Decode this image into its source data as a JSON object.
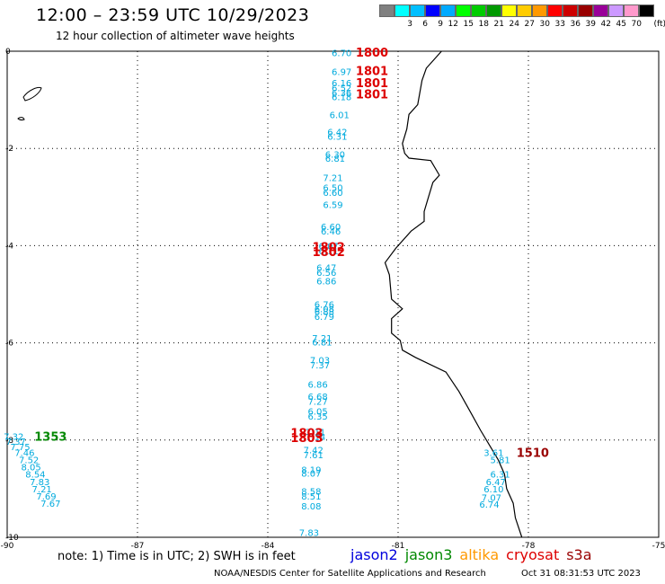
{
  "title": "12:00 – 23:59 UTC 10/29/2023",
  "subtitle": "12 hour collection of altimeter wave heights",
  "colorbar": {
    "unit": "(ft)",
    "items": [
      {
        "label": "",
        "color": "#808080"
      },
      {
        "label": "3",
        "color": "#00ffff"
      },
      {
        "label": "6",
        "color": "#00bfff"
      },
      {
        "label": "9",
        "color": "#0000ff"
      },
      {
        "label": "12",
        "color": "#00aaff"
      },
      {
        "label": "15",
        "color": "#00ff00"
      },
      {
        "label": "18",
        "color": "#00cc00"
      },
      {
        "label": "21",
        "color": "#009900"
      },
      {
        "label": "24",
        "color": "#ffff00"
      },
      {
        "label": "27",
        "color": "#ffcc00"
      },
      {
        "label": "30",
        "color": "#ff9900"
      },
      {
        "label": "33",
        "color": "#ff0000"
      },
      {
        "label": "36",
        "color": "#cc0000"
      },
      {
        "label": "39",
        "color": "#990000"
      },
      {
        "label": "42",
        "color": "#990099"
      },
      {
        "label": "45",
        "color": "#cc99ff"
      },
      {
        "label": "70",
        "color": "#ff99cc"
      },
      {
        "label": "",
        "color": "#000000"
      }
    ]
  },
  "axes": {
    "lon_min": -90,
    "lon_max": -75,
    "lat_min": -10,
    "lat_max": 0,
    "x_ticks": [
      "-90",
      "-87",
      "-84",
      "-81",
      "-78",
      "-75"
    ],
    "y_ticks": [
      "0",
      "-2",
      "-4",
      "-6",
      "-8",
      "-10"
    ]
  },
  "colors": {
    "swh": "#00aadd",
    "jason2": "#0000dd",
    "jason3": "#008800",
    "altika": "#ff9900",
    "cryosat": "#dd0000",
    "s3a": "#990000",
    "coast": "#000000",
    "grid": "#000000"
  },
  "chart_data": {
    "type": "scatter",
    "series": [
      {
        "name": "cryosat",
        "time_labels": [
          {
            "lon": -81.6,
            "lat": -0.02,
            "text": "1800"
          },
          {
            "lon": -81.6,
            "lat": -0.4,
            "text": "1801"
          },
          {
            "lon": -81.6,
            "lat": -0.65,
            "text": "1801"
          },
          {
            "lon": -81.6,
            "lat": -0.88,
            "text": "1801"
          },
          {
            "lon": -82.6,
            "lat": -4.02,
            "text": "1802"
          },
          {
            "lon": -82.6,
            "lat": -4.12,
            "text": "1802"
          },
          {
            "lon": -83.1,
            "lat": -7.85,
            "text": "1803"
          },
          {
            "lon": -83.1,
            "lat": -7.95,
            "text": "1803"
          }
        ],
        "points": [
          {
            "lon": -82.3,
            "lat": -0.03,
            "swh": "6.70"
          },
          {
            "lon": -82.3,
            "lat": -0.42,
            "swh": "6.97"
          },
          {
            "lon": -82.3,
            "lat": -0.65,
            "swh": "6.16"
          },
          {
            "lon": -82.3,
            "lat": -0.75,
            "swh": "6.52"
          },
          {
            "lon": -82.3,
            "lat": -0.85,
            "swh": "6.36"
          },
          {
            "lon": -82.3,
            "lat": -0.93,
            "swh": "6.18"
          },
          {
            "lon": -82.35,
            "lat": -1.3,
            "swh": "6.01"
          },
          {
            "lon": -82.4,
            "lat": -1.65,
            "swh": "6.42"
          },
          {
            "lon": -82.4,
            "lat": -1.75,
            "swh": "6.31"
          },
          {
            "lon": -82.45,
            "lat": -2.12,
            "swh": "6.30"
          },
          {
            "lon": -82.45,
            "lat": -2.2,
            "swh": "6.81"
          },
          {
            "lon": -82.5,
            "lat": -2.6,
            "swh": "7.21"
          },
          {
            "lon": -82.5,
            "lat": -2.8,
            "swh": "6.50"
          },
          {
            "lon": -82.5,
            "lat": -2.9,
            "swh": "6.60"
          },
          {
            "lon": -82.5,
            "lat": -3.15,
            "swh": "6.59"
          },
          {
            "lon": -82.55,
            "lat": -3.6,
            "swh": "6.60"
          },
          {
            "lon": -82.55,
            "lat": -3.7,
            "swh": "6.46"
          },
          {
            "lon": -82.6,
            "lat": -4.0,
            "swh": "6.07"
          },
          {
            "lon": -82.6,
            "lat": -4.1,
            "swh": "6.11"
          },
          {
            "lon": -82.65,
            "lat": -4.45,
            "swh": "6.47"
          },
          {
            "lon": -82.65,
            "lat": -4.55,
            "swh": "6.56"
          },
          {
            "lon": -82.65,
            "lat": -4.72,
            "swh": "6.86"
          },
          {
            "lon": -82.7,
            "lat": -5.2,
            "swh": "6.76"
          },
          {
            "lon": -82.7,
            "lat": -5.3,
            "swh": "6.08"
          },
          {
            "lon": -82.7,
            "lat": -5.35,
            "swh": "6.88"
          },
          {
            "lon": -82.7,
            "lat": -5.45,
            "swh": "6.79"
          },
          {
            "lon": -82.75,
            "lat": -5.9,
            "swh": "7.21"
          },
          {
            "lon": -82.75,
            "lat": -5.98,
            "swh": "6.81"
          },
          {
            "lon": -82.8,
            "lat": -6.35,
            "swh": "7.03"
          },
          {
            "lon": -82.8,
            "lat": -6.45,
            "swh": "7.37"
          },
          {
            "lon": -82.85,
            "lat": -6.85,
            "swh": "6.86"
          },
          {
            "lon": -82.85,
            "lat": -7.1,
            "swh": "6.68"
          },
          {
            "lon": -82.85,
            "lat": -7.2,
            "swh": "7.27"
          },
          {
            "lon": -82.85,
            "lat": -7.4,
            "swh": "6.05"
          },
          {
            "lon": -82.85,
            "lat": -7.5,
            "swh": "6.35"
          },
          {
            "lon": -82.9,
            "lat": -7.83,
            "swh": "7.11"
          },
          {
            "lon": -82.9,
            "lat": -7.93,
            "swh": "7.14"
          },
          {
            "lon": -82.95,
            "lat": -8.2,
            "swh": "7.42"
          },
          {
            "lon": -82.95,
            "lat": -8.3,
            "swh": "7.61"
          },
          {
            "lon": -83.0,
            "lat": -8.6,
            "swh": "8.19"
          },
          {
            "lon": -83.0,
            "lat": -8.68,
            "swh": "8.07"
          },
          {
            "lon": -83.0,
            "lat": -9.05,
            "swh": "8.58"
          },
          {
            "lon": -83.0,
            "lat": -9.15,
            "swh": "8.51"
          },
          {
            "lon": -83.0,
            "lat": -9.35,
            "swh": "8.08"
          },
          {
            "lon": -83.05,
            "lat": -9.9,
            "swh": "7.83"
          }
        ]
      },
      {
        "name": "jason3",
        "time_labels": [
          {
            "lon": -89.0,
            "lat": -7.92,
            "text": "1353"
          }
        ],
        "points": [
          {
            "lon": -89.85,
            "lat": -7.92,
            "swh": "7.32"
          },
          {
            "lon": -89.8,
            "lat": -8.02,
            "swh": "7.37"
          },
          {
            "lon": -89.7,
            "lat": -8.13,
            "swh": "7.75"
          },
          {
            "lon": -89.6,
            "lat": -8.25,
            "swh": "7.46"
          },
          {
            "lon": -89.5,
            "lat": -8.4,
            "swh": "7.52"
          },
          {
            "lon": -89.45,
            "lat": -8.55,
            "swh": "8.05"
          },
          {
            "lon": -89.35,
            "lat": -8.7,
            "swh": "8.54"
          },
          {
            "lon": -89.25,
            "lat": -8.85,
            "swh": "7.83"
          },
          {
            "lon": -89.2,
            "lat": -9.0,
            "swh": "7.21"
          },
          {
            "lon": -89.1,
            "lat": -9.15,
            "swh": "7.69"
          },
          {
            "lon": -89.0,
            "lat": -9.3,
            "swh": "7.67"
          }
        ]
      },
      {
        "name": "s3a",
        "time_labels": [
          {
            "lon": -77.9,
            "lat": -8.25,
            "text": "1510"
          }
        ],
        "points": [
          {
            "lon": -78.8,
            "lat": -8.25,
            "swh": "3.61"
          },
          {
            "lon": -78.65,
            "lat": -8.4,
            "swh": "5.81"
          },
          {
            "lon": -78.65,
            "lat": -8.7,
            "swh": "6.31"
          },
          {
            "lon": -78.75,
            "lat": -8.85,
            "swh": "6.47"
          },
          {
            "lon": -78.8,
            "lat": -9.0,
            "swh": "6.10"
          },
          {
            "lon": -78.85,
            "lat": -9.18,
            "swh": "7.07"
          },
          {
            "lon": -78.9,
            "lat": -9.32,
            "swh": "6.74"
          }
        ]
      }
    ]
  },
  "coast": [
    [
      -80.0,
      0.0
    ],
    [
      -80.1,
      -0.1
    ],
    [
      -80.35,
      -0.35
    ],
    [
      -80.45,
      -0.6
    ],
    [
      -80.5,
      -0.85
    ],
    [
      -80.55,
      -1.1
    ],
    [
      -80.75,
      -1.3
    ],
    [
      -80.8,
      -1.6
    ],
    [
      -80.9,
      -1.9
    ],
    [
      -80.85,
      -2.1
    ],
    [
      -80.75,
      -2.2
    ],
    [
      -80.25,
      -2.25
    ],
    [
      -80.05,
      -2.55
    ],
    [
      -80.2,
      -2.7
    ],
    [
      -80.3,
      -3.0
    ],
    [
      -80.4,
      -3.3
    ],
    [
      -80.4,
      -3.5
    ],
    [
      -80.7,
      -3.7
    ],
    [
      -81.05,
      -4.05
    ],
    [
      -81.3,
      -4.35
    ],
    [
      -81.2,
      -4.6
    ],
    [
      -81.15,
      -5.1
    ],
    [
      -80.9,
      -5.3
    ],
    [
      -81.15,
      -5.5
    ],
    [
      -81.15,
      -5.8
    ],
    [
      -80.95,
      -5.95
    ],
    [
      -80.9,
      -6.15
    ],
    [
      -80.6,
      -6.3
    ],
    [
      -79.9,
      -6.6
    ],
    [
      -79.6,
      -7.0
    ],
    [
      -79.35,
      -7.4
    ],
    [
      -79.1,
      -7.8
    ],
    [
      -78.9,
      -8.1
    ],
    [
      -78.7,
      -8.4
    ],
    [
      -78.55,
      -8.7
    ],
    [
      -78.5,
      -9.0
    ],
    [
      -78.35,
      -9.3
    ],
    [
      -78.3,
      -9.6
    ],
    [
      -78.15,
      -10.0
    ]
  ],
  "note": "note:  1) Time is in UTC;  2) SWH is in feet",
  "legend": [
    "jason2",
    "jason3",
    "altika",
    "cryosat",
    "s3a"
  ],
  "credit": "NOAA/NESDIS Center for Satellite Applications and Research",
  "timestamp": "Oct 31 08:31:53 UTC 2023"
}
